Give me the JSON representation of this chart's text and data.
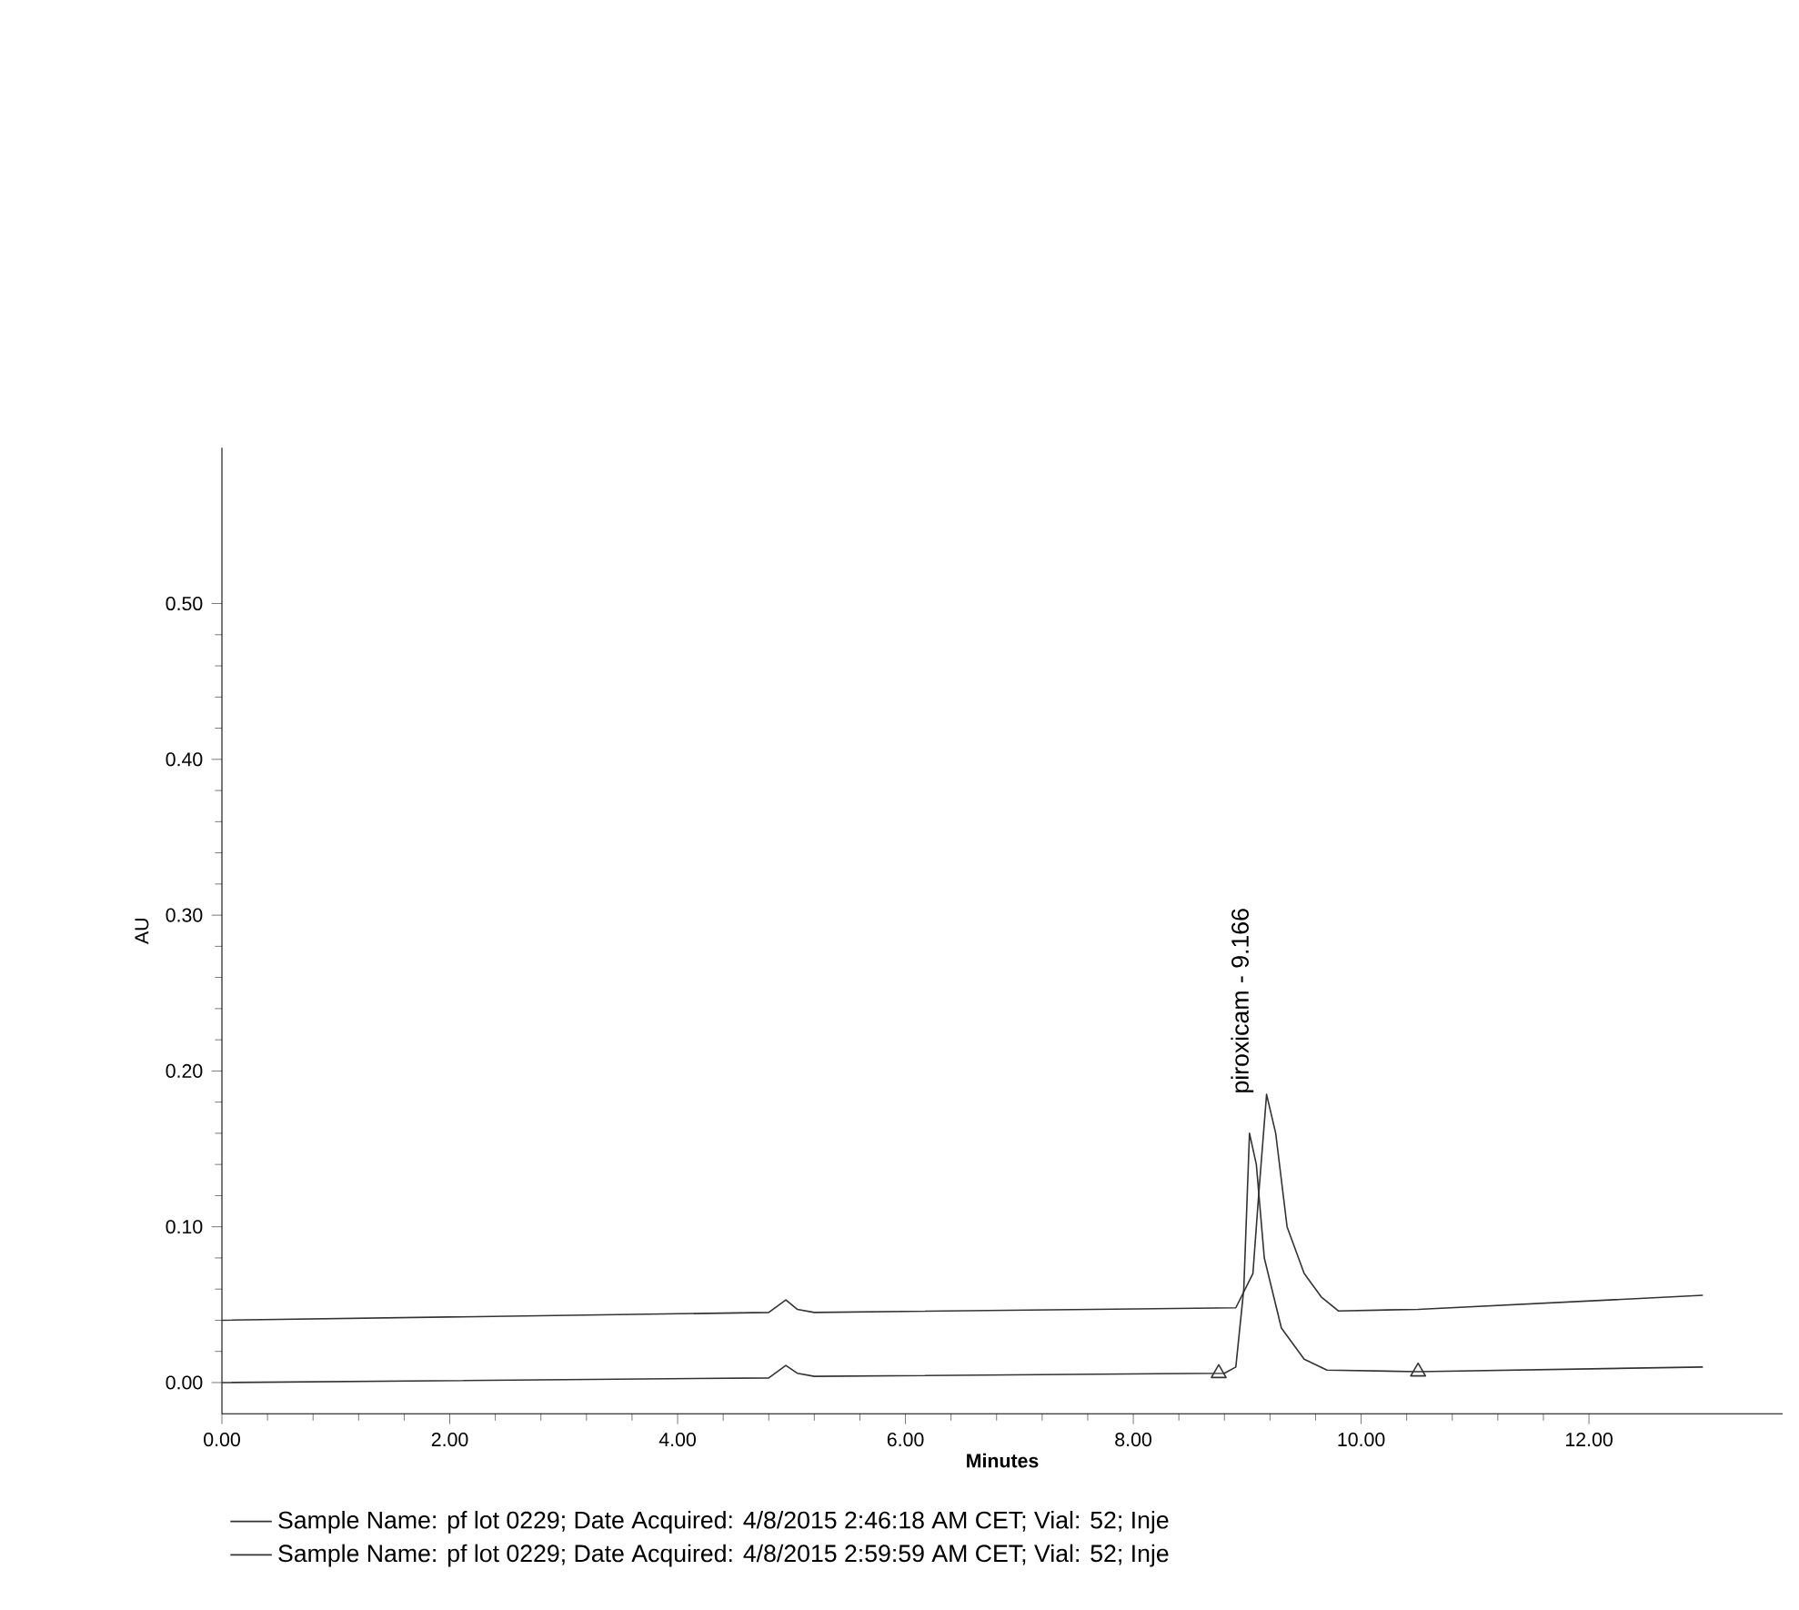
{
  "chart_data": {
    "type": "line",
    "xlabel": "Minutes",
    "ylabel": "AU",
    "xlim": [
      0,
      13.7
    ],
    "ylim": [
      -0.02,
      0.6
    ],
    "xticks": [
      {
        "value": 0,
        "label": "0.00"
      },
      {
        "value": 2,
        "label": "2.00"
      },
      {
        "value": 4,
        "label": "4.00"
      },
      {
        "value": 6,
        "label": "6.00"
      },
      {
        "value": 8,
        "label": "8.00"
      },
      {
        "value": 10,
        "label": "10.00"
      },
      {
        "value": 12,
        "label": "12.00"
      }
    ],
    "yticks": [
      {
        "value": 0,
        "label": "0.00"
      },
      {
        "value": 0.1,
        "label": "0.10"
      },
      {
        "value": 0.2,
        "label": "0.20"
      },
      {
        "value": 0.3,
        "label": "0.30"
      },
      {
        "value": 0.4,
        "label": "0.40"
      },
      {
        "value": 0.5,
        "label": "0.50"
      }
    ],
    "legend": "bottom",
    "series": [
      {
        "name": "Sample Name: pf lot 0229;   Date Acquired: 4/8/2015 2:46:18 AM CET;   Vial: 52; Inje",
        "color": "#333333",
        "x": [
          0,
          4.8,
          4.95,
          5.05,
          5.2,
          8.9,
          9.05,
          9.1,
          9.17,
          9.25,
          9.35,
          9.5,
          9.65,
          9.8,
          10.5,
          13
        ],
        "values": [
          0.04,
          0.045,
          0.053,
          0.047,
          0.045,
          0.048,
          0.07,
          0.12,
          0.185,
          0.16,
          0.1,
          0.07,
          0.055,
          0.046,
          0.047,
          0.056
        ]
      },
      {
        "name": "Sample Name: pf lot 0229;   Date Acquired: 4/8/2015 2:59:59 AM CET;   Vial: 52; Inje",
        "color": "#333333",
        "x": [
          0,
          4.8,
          4.95,
          5.05,
          5.2,
          8.8,
          8.9,
          8.97,
          9.02,
          9.08,
          9.15,
          9.3,
          9.5,
          9.7,
          10.5,
          13
        ],
        "values": [
          0.0,
          0.003,
          0.011,
          0.006,
          0.004,
          0.006,
          0.01,
          0.06,
          0.16,
          0.14,
          0.08,
          0.035,
          0.015,
          0.008,
          0.007,
          0.01
        ]
      },
      {
        "type": "scatter",
        "marker": "triangle",
        "color": "#333333",
        "x": [
          8.75,
          10.5
        ],
        "values": [
          0.006,
          0.007
        ]
      }
    ],
    "annotations": [
      {
        "text": "piroxicam - 9.166",
        "x": 9.166,
        "y": 0.185
      }
    ]
  }
}
